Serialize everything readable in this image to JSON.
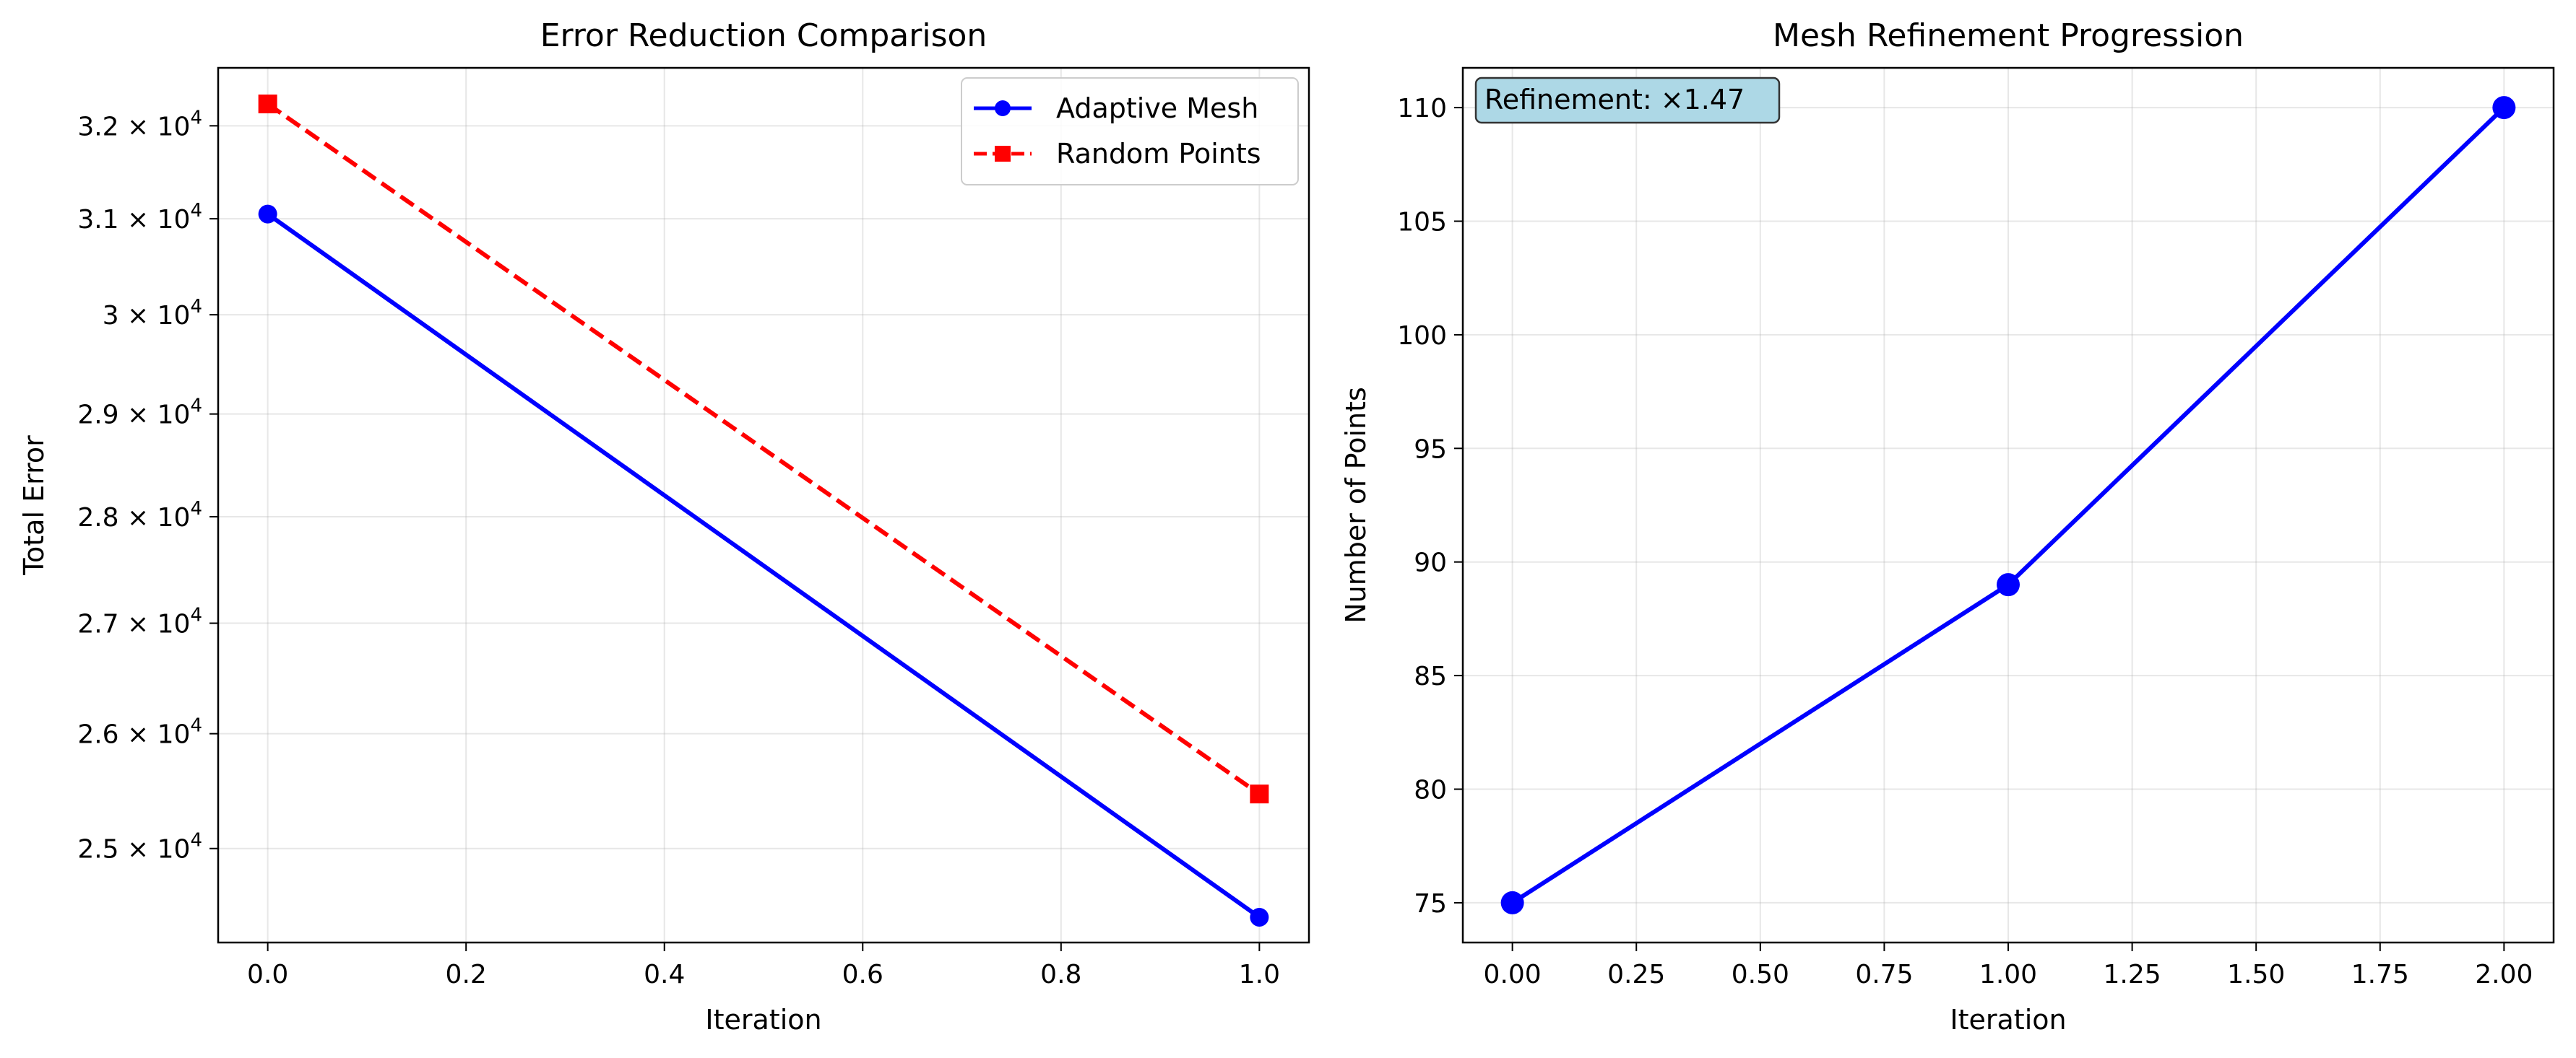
{
  "chart_data": [
    {
      "type": "line",
      "title": "Error Reduction Comparison",
      "xlabel": "Iteration",
      "ylabel": "Total Error",
      "y_scale": "log",
      "xlim": [
        -0.05,
        1.05
      ],
      "ylim": [
        24210,
        32640
      ],
      "x_ticks": [
        0.0,
        0.2,
        0.4,
        0.6,
        0.8,
        1.0
      ],
      "x_tick_labels": [
        "0.0",
        "0.2",
        "0.4",
        "0.6",
        "0.8",
        "1.0"
      ],
      "y_ticks": [
        25000,
        26000,
        27000,
        28000,
        29000,
        30000,
        31000,
        32000
      ],
      "y_tick_labels": [
        {
          "mantissa": "2.5",
          "base": "10",
          "exp": "4"
        },
        {
          "mantissa": "2.6",
          "base": "10",
          "exp": "4"
        },
        {
          "mantissa": "2.7",
          "base": "10",
          "exp": "4"
        },
        {
          "mantissa": "2.8",
          "base": "10",
          "exp": "4"
        },
        {
          "mantissa": "2.9",
          "base": "10",
          "exp": "4"
        },
        {
          "mantissa": "3",
          "base": "10",
          "exp": "4"
        },
        {
          "mantissa": "3.1",
          "base": "10",
          "exp": "4"
        },
        {
          "mantissa": "3.2",
          "base": "10",
          "exp": "4"
        }
      ],
      "grid": true,
      "legend_position": "upper-right",
      "series": [
        {
          "name": "Adaptive Mesh",
          "x": [
            0,
            1
          ],
          "y": [
            31050,
            24420
          ],
          "color": "#0000ff",
          "linestyle": "solid",
          "marker": "circle"
        },
        {
          "name": "Random Points",
          "x": [
            0,
            1
          ],
          "y": [
            32240,
            25470
          ],
          "color": "#ff0000",
          "linestyle": "dashed",
          "marker": "square"
        }
      ]
    },
    {
      "type": "line",
      "title": "Mesh Refinement Progression",
      "xlabel": "Iteration",
      "ylabel": "Number of Points",
      "xlim": [
        -0.1,
        2.1
      ],
      "ylim": [
        73.25,
        111.75
      ],
      "x_ticks": [
        0.0,
        0.25,
        0.5,
        0.75,
        1.0,
        1.25,
        1.5,
        1.75,
        2.0
      ],
      "x_tick_labels": [
        "0.00",
        "0.25",
        "0.50",
        "0.75",
        "1.00",
        "1.25",
        "1.50",
        "1.75",
        "2.00"
      ],
      "y_ticks": [
        75,
        80,
        85,
        90,
        95,
        100,
        105,
        110
      ],
      "y_tick_labels": [
        "75",
        "80",
        "85",
        "90",
        "95",
        "100",
        "105",
        "110"
      ],
      "grid": true,
      "annotation": "Refinement: ×1.47",
      "annotation_bg": "#add8e6",
      "series": [
        {
          "x": [
            0,
            1,
            2
          ],
          "y": [
            75,
            89,
            110
          ],
          "color": "#0000ff",
          "linestyle": "solid",
          "marker": "circle"
        }
      ]
    }
  ]
}
